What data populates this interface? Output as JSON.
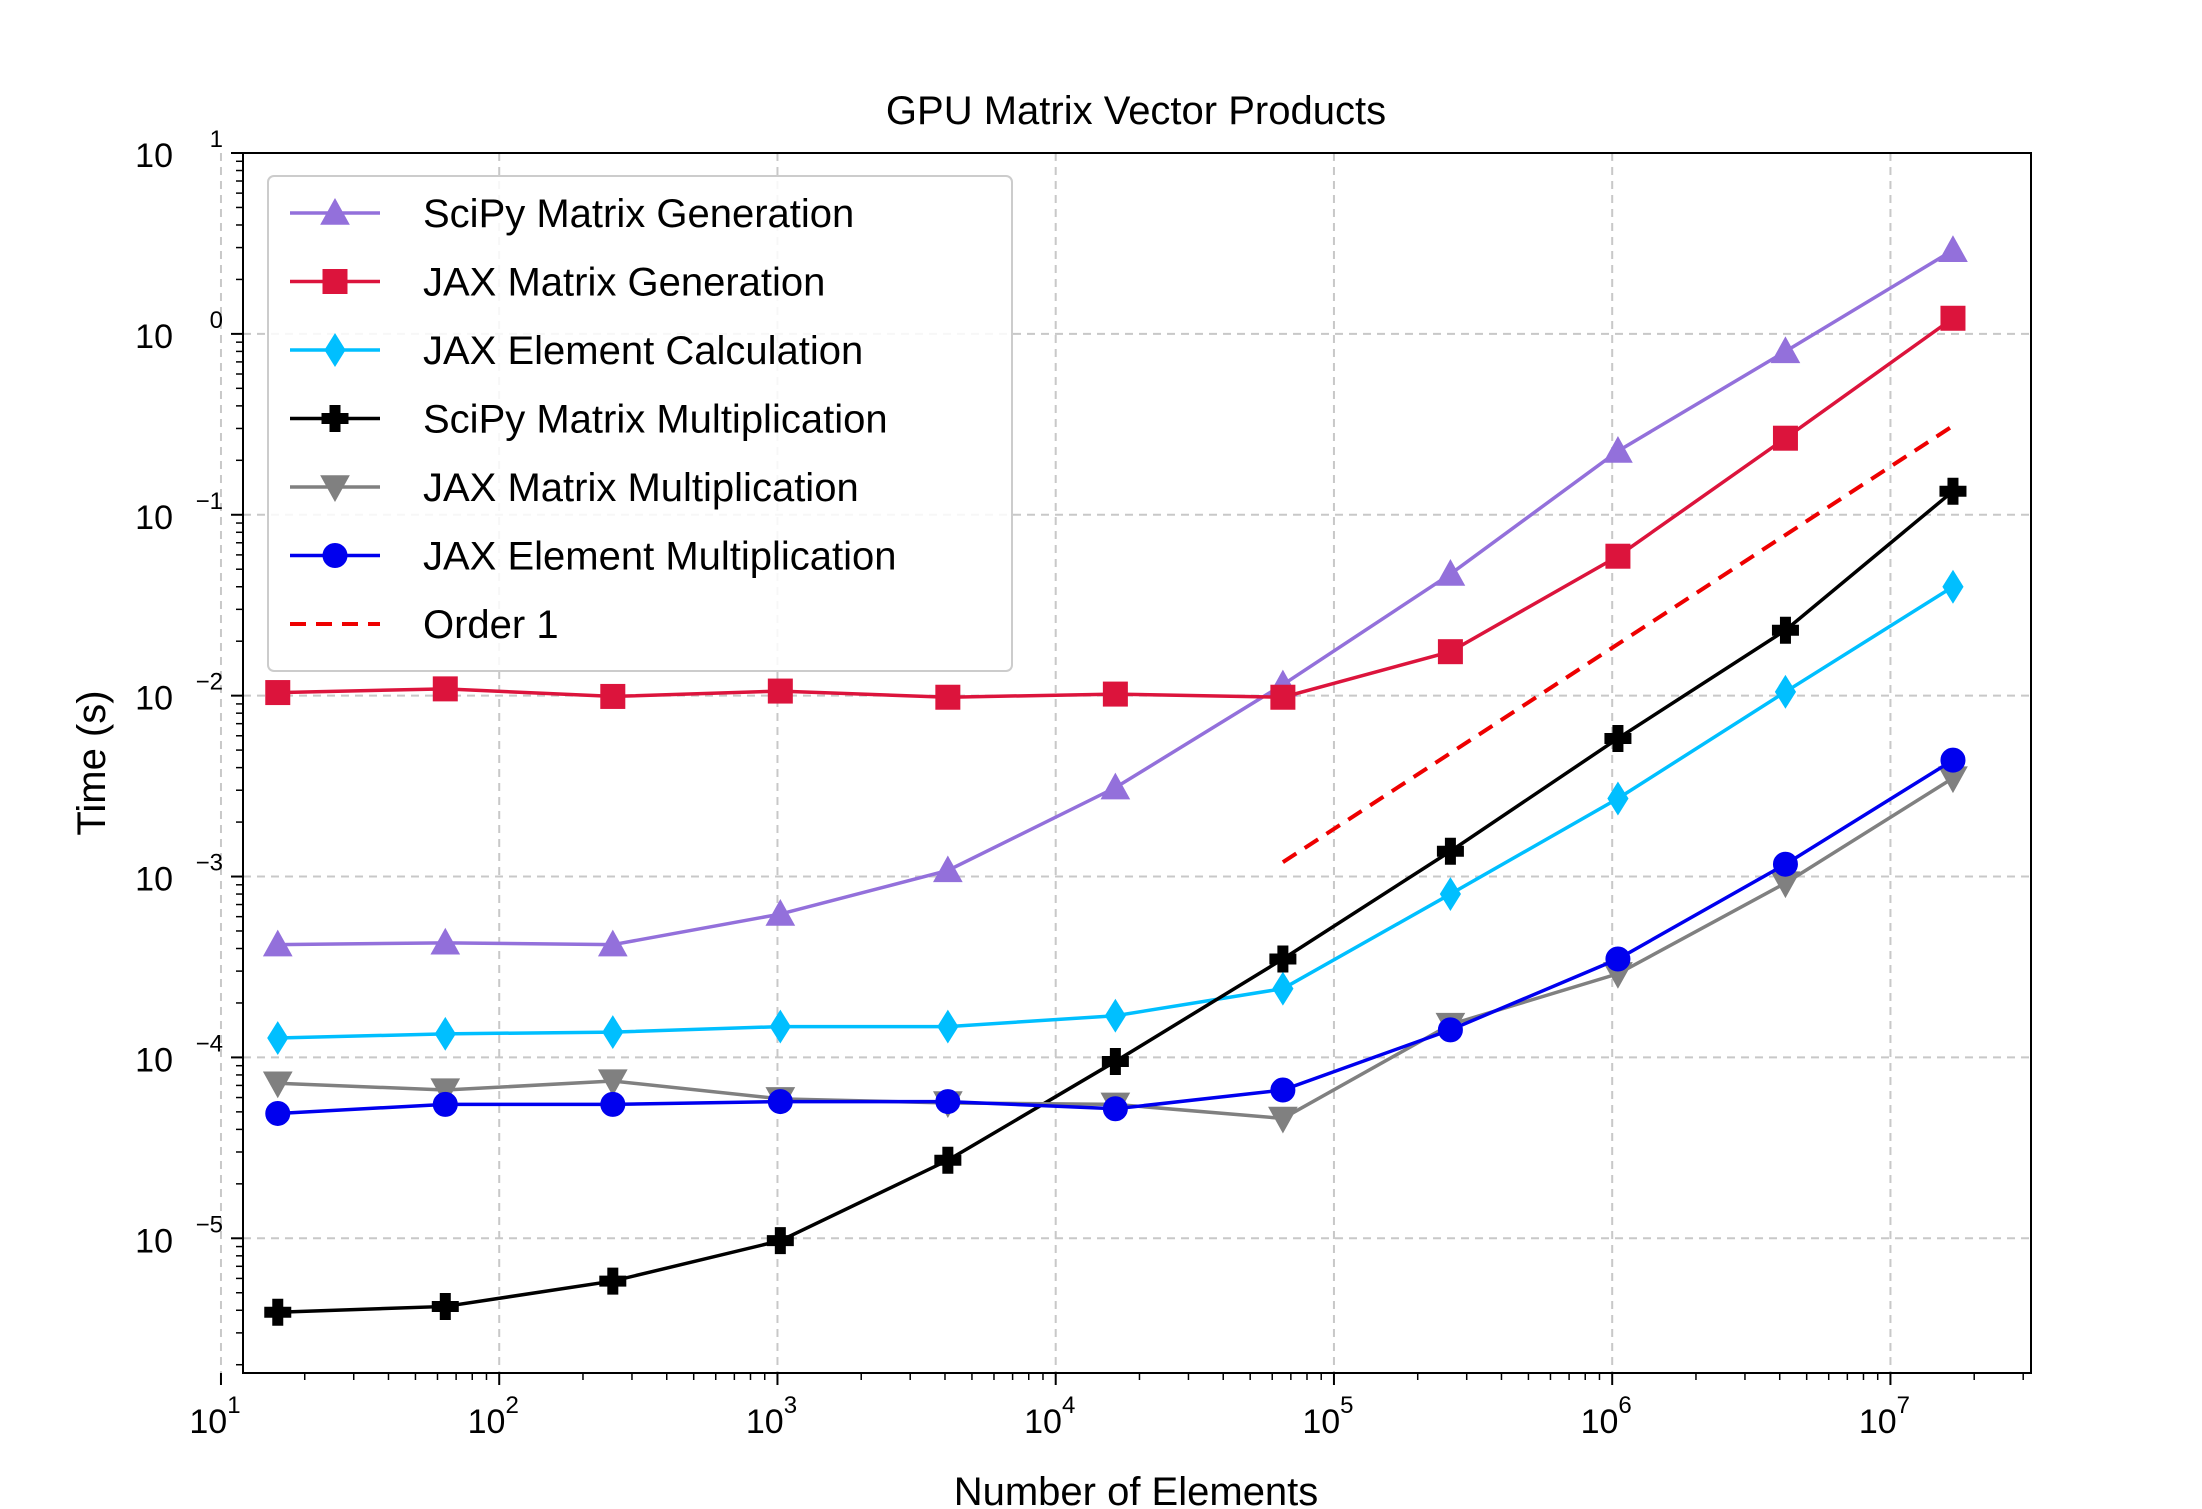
{
  "chart_data": {
    "type": "line",
    "title": "GPU Matrix Vector Products",
    "xlabel": "Number of Elements",
    "ylabel": "Time (s)",
    "xscale": "log",
    "yscale": "log",
    "xlim": [
      12,
      32000000
    ],
    "ylim": [
      1.8e-06,
      10
    ],
    "x_ticks": [
      {
        "value": 10,
        "base": "10",
        "exp": "1"
      },
      {
        "value": 100,
        "base": "10",
        "exp": "2"
      },
      {
        "value": 1000,
        "base": "10",
        "exp": "3"
      },
      {
        "value": 10000,
        "base": "10",
        "exp": "4"
      },
      {
        "value": 100000,
        "base": "10",
        "exp": "5"
      },
      {
        "value": 1000000,
        "base": "10",
        "exp": "6"
      },
      {
        "value": 10000000,
        "base": "10",
        "exp": "7"
      }
    ],
    "y_ticks": [
      {
        "value": 1e-05,
        "base": "10",
        "exp": "−5"
      },
      {
        "value": 0.0001,
        "base": "10",
        "exp": "−4"
      },
      {
        "value": 0.001,
        "base": "10",
        "exp": "−3"
      },
      {
        "value": 0.01,
        "base": "10",
        "exp": "−2"
      },
      {
        "value": 0.1,
        "base": "10",
        "exp": "−1"
      },
      {
        "value": 1,
        "base": "10",
        "exp": "0"
      },
      {
        "value": 10,
        "base": "10",
        "exp": "1"
      }
    ],
    "grid": true,
    "legend_position": "top-left",
    "x": [
      16,
      64,
      256,
      1024,
      4096,
      16384,
      65536,
      262144,
      1048576,
      4194304,
      16777216
    ],
    "series": [
      {
        "name": "SciPy Matrix Generation",
        "color": "#9370DB",
        "marker": "triangle-up",
        "values": [
          0.00042,
          0.00043,
          0.00042,
          0.00062,
          0.00108,
          0.0031,
          0.0115,
          0.047,
          0.225,
          0.8,
          2.9
        ]
      },
      {
        "name": "JAX Matrix Generation",
        "color": "#DC143C",
        "marker": "square",
        "values": [
          0.0104,
          0.0109,
          0.0099,
          0.0106,
          0.0098,
          0.0102,
          0.0098,
          0.0175,
          0.059,
          0.265,
          1.22
        ]
      },
      {
        "name": "JAX Element Calculation",
        "color": "#00BFFF",
        "marker": "thin-diamond",
        "values": [
          0.000128,
          0.000135,
          0.000138,
          0.000148,
          0.000148,
          0.00017,
          0.00024,
          0.0008,
          0.0027,
          0.0105,
          0.04
        ]
      },
      {
        "name": "SciPy Matrix Multiplication",
        "color": "#000000",
        "marker": "plus-filled",
        "values": [
          3.9e-06,
          4.2e-06,
          5.8e-06,
          9.7e-06,
          2.7e-05,
          9.5e-05,
          0.00035,
          0.00138,
          0.0058,
          0.023,
          0.135
        ]
      },
      {
        "name": "JAX Matrix Multiplication",
        "color": "#808080",
        "marker": "triangle-down",
        "values": [
          7.2e-05,
          6.6e-05,
          7.4e-05,
          5.9e-05,
          5.6e-05,
          5.5e-05,
          4.6e-05,
          0.000152,
          0.00029,
          0.00092,
          0.0035
        ]
      },
      {
        "name": "JAX Element Multiplication",
        "color": "#0000EE",
        "marker": "circle",
        "values": [
          4.9e-05,
          5.5e-05,
          5.5e-05,
          5.7e-05,
          5.7e-05,
          5.2e-05,
          6.6e-05,
          0.000142,
          0.00035,
          0.00117,
          0.0044
        ]
      },
      {
        "name": "Order 1",
        "color": "#EE0000",
        "marker": "none",
        "dashed": true,
        "x": [
          65536,
          16777216
        ],
        "values": [
          0.0012,
          0.31
        ]
      }
    ]
  }
}
